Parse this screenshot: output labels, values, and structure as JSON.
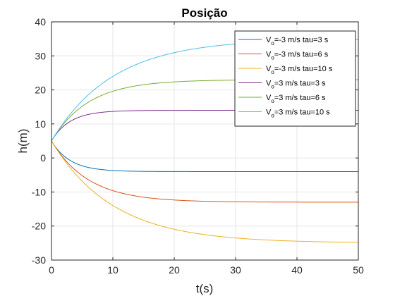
{
  "chart_data": {
    "type": "line",
    "title": "Posição",
    "xlabel": "t(s)",
    "ylabel": "h(m)",
    "xlim": [
      0,
      50
    ],
    "ylim": [
      -30,
      40
    ],
    "xticks": [
      "0",
      "10",
      "20",
      "30",
      "40",
      "50"
    ],
    "yticks": [
      "-30",
      "-20",
      "-10",
      "0",
      "10",
      "20",
      "30",
      "40"
    ],
    "grid": true,
    "legend_position": "top-right",
    "series": [
      {
        "name": "V_o=-3 m/s tau=3 s",
        "label_main": "V",
        "label_sub": "o",
        "label_rest": "=-3 m/s tau=3 s",
        "color": "#0072BD",
        "h0": 5,
        "v0": -3,
        "tau": 3,
        "final": -4
      },
      {
        "name": "V_o=-3 m/s tau=6 s",
        "label_main": "V",
        "label_sub": "o",
        "label_rest": "=-3 m/s tau=6 s",
        "color": "#D95319",
        "h0": 5,
        "v0": -3,
        "tau": 6,
        "final": -13
      },
      {
        "name": "V_o=-3 m/s tau=10 s",
        "label_main": "V",
        "label_sub": "o",
        "label_rest": "=-3 m/s tau=10 s",
        "color": "#EDB120",
        "h0": 5,
        "v0": -3,
        "tau": 10,
        "final": -25
      },
      {
        "name": "V_o=3 m/s tau=3 s",
        "label_main": "V",
        "label_sub": "o",
        "label_rest": "=3 m/s tau=3 s",
        "color": "#7E2F8E",
        "h0": 5,
        "v0": 3,
        "tau": 3,
        "final": 14
      },
      {
        "name": "V_o=3 m/s tau=6 s",
        "label_main": "V",
        "label_sub": "o",
        "label_rest": "=3 m/s tau=6 s",
        "color": "#77AC30",
        "h0": 5,
        "v0": 3,
        "tau": 6,
        "final": 23
      },
      {
        "name": "V_o=3 m/s tau=10 s",
        "label_main": "V",
        "label_sub": "o",
        "label_rest": "=3 m/s tau=10 s",
        "color": "#4DBEEE",
        "h0": 5,
        "v0": 3,
        "tau": 10,
        "final": 35
      }
    ]
  }
}
